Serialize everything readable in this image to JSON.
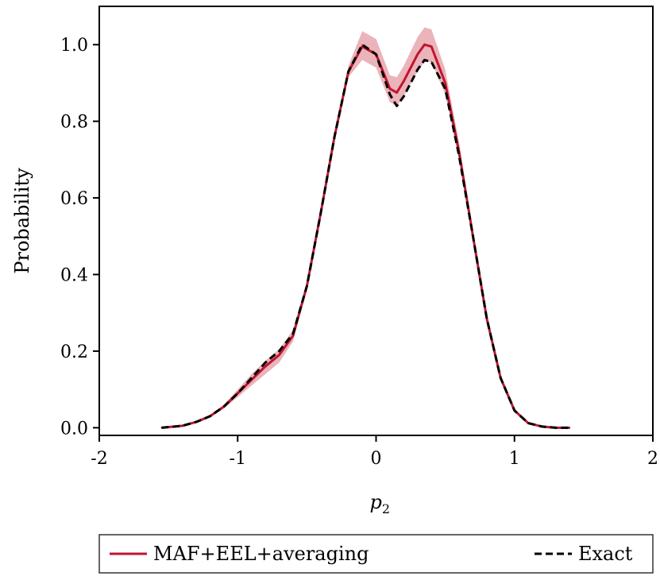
{
  "chart_data": {
    "type": "line",
    "title": "",
    "xlabel": "p",
    "xlabel_subscript": "2",
    "ylabel": "Probability",
    "xlim": [
      -2,
      2
    ],
    "ylim": [
      -0.02,
      1.1
    ],
    "xticks": [
      -2,
      -1,
      0,
      1,
      2
    ],
    "xtick_labels": [
      "-2",
      "-1",
      "0",
      "1",
      "2"
    ],
    "yticks": [
      0.0,
      0.2,
      0.4,
      0.6,
      0.8,
      1.0
    ],
    "ytick_labels": [
      "0.0",
      "0.2",
      "0.4",
      "0.6",
      "0.8",
      "1.0"
    ],
    "grid": false,
    "legend_position": "below",
    "colors": {
      "maf": "#c0152f",
      "band": "#e6a0a9",
      "exact": "#000000"
    },
    "series": [
      {
        "name": "MAF+EEL+averaging",
        "style": "solid",
        "x": [
          -1.55,
          -1.4,
          -1.3,
          -1.2,
          -1.1,
          -1.0,
          -0.9,
          -0.8,
          -0.7,
          -0.6,
          -0.5,
          -0.4,
          -0.3,
          -0.2,
          -0.1,
          0.0,
          0.1,
          0.15,
          0.2,
          0.3,
          0.35,
          0.4,
          0.5,
          0.6,
          0.7,
          0.8,
          0.9,
          1.0,
          1.1,
          1.2,
          1.3,
          1.4
        ],
        "values": [
          0.0,
          0.005,
          0.015,
          0.03,
          0.055,
          0.09,
          0.125,
          0.16,
          0.19,
          0.24,
          0.37,
          0.56,
          0.76,
          0.93,
          0.995,
          0.975,
          0.885,
          0.875,
          0.905,
          0.975,
          1.0,
          0.995,
          0.9,
          0.72,
          0.5,
          0.285,
          0.13,
          0.045,
          0.012,
          0.003,
          0.0,
          0.0
        ],
        "lower": [
          0.0,
          0.005,
          0.013,
          0.027,
          0.05,
          0.08,
          0.11,
          0.14,
          0.17,
          0.225,
          0.36,
          0.555,
          0.755,
          0.915,
          0.96,
          0.94,
          0.85,
          0.84,
          0.865,
          0.93,
          0.955,
          0.955,
          0.87,
          0.7,
          0.49,
          0.28,
          0.127,
          0.043,
          0.011,
          0.003,
          0.0,
          0.0
        ],
        "upper": [
          0.0,
          0.006,
          0.017,
          0.033,
          0.06,
          0.1,
          0.14,
          0.175,
          0.205,
          0.255,
          0.38,
          0.57,
          0.77,
          0.945,
          1.035,
          1.015,
          0.92,
          0.915,
          0.945,
          1.02,
          1.045,
          1.04,
          0.935,
          0.745,
          0.515,
          0.295,
          0.135,
          0.048,
          0.014,
          0.004,
          0.001,
          0.0
        ]
      },
      {
        "name": "Exact",
        "style": "dashed",
        "x": [
          -1.55,
          -1.4,
          -1.3,
          -1.2,
          -1.1,
          -1.0,
          -0.9,
          -0.8,
          -0.7,
          -0.6,
          -0.5,
          -0.4,
          -0.3,
          -0.2,
          -0.1,
          0.0,
          0.1,
          0.15,
          0.2,
          0.3,
          0.35,
          0.4,
          0.5,
          0.6,
          0.7,
          0.8,
          0.9,
          1.0,
          1.1,
          1.2,
          1.3,
          1.4
        ],
        "values": [
          0.0,
          0.005,
          0.015,
          0.03,
          0.055,
          0.09,
          0.13,
          0.17,
          0.2,
          0.245,
          0.37,
          0.56,
          0.76,
          0.93,
          1.0,
          0.975,
          0.87,
          0.84,
          0.865,
          0.935,
          0.96,
          0.955,
          0.885,
          0.71,
          0.5,
          0.285,
          0.13,
          0.045,
          0.012,
          0.003,
          0.0,
          0.0
        ]
      }
    ]
  }
}
